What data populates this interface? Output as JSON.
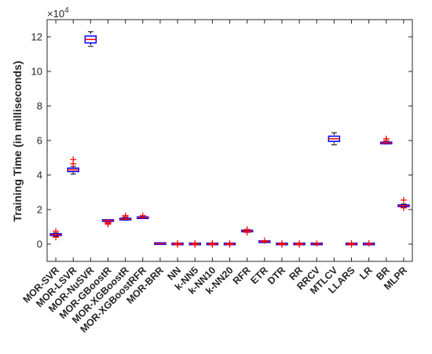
{
  "chart_data": {
    "type": "boxplot",
    "title": "",
    "xlabel": "",
    "ylabel": "Training Time (in milliseconds)",
    "y_multiplier": "×10^4",
    "y_multiplier_base": "×10",
    "y_multiplier_exp": "4",
    "ylim": [
      -1,
      13
    ],
    "yticks": [
      0,
      2,
      4,
      6,
      8,
      10,
      12
    ],
    "grid": false,
    "box_color": "#0000ff",
    "median_color": "#ff0000",
    "outlier_color": "#ff0000",
    "whisker_color": "#000000",
    "values_unit_note": "values in units of 10^4 ms",
    "categories": [
      "MOR-SVR",
      "MOR-LSVR",
      "MOR-NuSVR",
      "MOR-GBoostR",
      "MOR-XGBoostR",
      "MOR-XGBoostRFR",
      "MOR-BRR",
      "NN",
      "k-NN5",
      "k-NN10",
      "k-NN20",
      "RFR",
      "ETR",
      "DTR",
      "RR",
      "RRCV",
      "MTLCV",
      "LLARS",
      "LR",
      "BR",
      "MLPR"
    ],
    "boxes": [
      {
        "min": 0.45,
        "q1": 0.5,
        "median": 0.55,
        "q3": 0.6,
        "max": 0.65,
        "outliers": [
          0.75,
          0.4
        ]
      },
      {
        "min": 4.05,
        "q1": 4.2,
        "median": 4.3,
        "q3": 4.4,
        "max": 4.5,
        "outliers": [
          4.65,
          4.9
        ]
      },
      {
        "min": 11.45,
        "q1": 11.65,
        "median": 11.85,
        "q3": 12.05,
        "max": 12.3,
        "outliers": []
      },
      {
        "min": 1.32,
        "q1": 1.35,
        "median": 1.37,
        "q3": 1.38,
        "max": 1.4,
        "outliers": [
          1.15,
          1.2,
          1.25
        ]
      },
      {
        "min": 1.38,
        "q1": 1.42,
        "median": 1.45,
        "q3": 1.48,
        "max": 1.52,
        "outliers": [
          1.58,
          1.65
        ]
      },
      {
        "min": 1.48,
        "q1": 1.5,
        "median": 1.53,
        "q3": 1.56,
        "max": 1.6,
        "outliers": [
          1.65
        ]
      },
      {
        "min": 0.02,
        "q1": 0.025,
        "median": 0.03,
        "q3": 0.035,
        "max": 0.04,
        "outliers": []
      },
      {
        "min": 0.0,
        "q1": 0.0,
        "median": 0.01,
        "q3": 0.02,
        "max": 0.02,
        "outliers": [
          0.05,
          -0.03
        ]
      },
      {
        "min": 0.0,
        "q1": 0.0,
        "median": 0.01,
        "q3": 0.02,
        "max": 0.02,
        "outliers": [
          0.05,
          -0.03
        ]
      },
      {
        "min": 0.0,
        "q1": 0.0,
        "median": 0.01,
        "q3": 0.02,
        "max": 0.02,
        "outliers": [
          0.05,
          -0.03
        ]
      },
      {
        "min": 0.0,
        "q1": 0.0,
        "median": 0.01,
        "q3": 0.02,
        "max": 0.02,
        "outliers": [
          0.05,
          -0.03
        ]
      },
      {
        "min": 0.72,
        "q1": 0.74,
        "median": 0.76,
        "q3": 0.78,
        "max": 0.8,
        "outliers": [
          0.85,
          0.68
        ]
      },
      {
        "min": 0.12,
        "q1": 0.13,
        "median": 0.14,
        "q3": 0.15,
        "max": 0.16,
        "outliers": [
          0.2
        ]
      },
      {
        "min": 0.0,
        "q1": 0.0,
        "median": 0.01,
        "q3": 0.02,
        "max": 0.02,
        "outliers": [
          0.05,
          -0.03
        ]
      },
      {
        "min": 0.0,
        "q1": 0.0,
        "median": 0.01,
        "q3": 0.02,
        "max": 0.02,
        "outliers": [
          0.05,
          -0.03
        ]
      },
      {
        "min": 0.0,
        "q1": 0.0,
        "median": 0.01,
        "q3": 0.02,
        "max": 0.02,
        "outliers": [
          0.04
        ]
      },
      {
        "min": 5.75,
        "q1": 5.95,
        "median": 6.1,
        "q3": 6.25,
        "max": 6.45,
        "outliers": []
      },
      {
        "min": 0.0,
        "q1": 0.0,
        "median": 0.01,
        "q3": 0.02,
        "max": 0.02,
        "outliers": [
          0.05,
          -0.03
        ]
      },
      {
        "min": 0.0,
        "q1": 0.0,
        "median": 0.01,
        "q3": 0.02,
        "max": 0.02,
        "outliers": [
          0.04
        ]
      },
      {
        "min": 5.8,
        "q1": 5.83,
        "median": 5.86,
        "q3": 5.89,
        "max": 5.92,
        "outliers": [
          6.0,
          6.1
        ]
      },
      {
        "min": 2.12,
        "q1": 2.17,
        "median": 2.22,
        "q3": 2.27,
        "max": 2.32,
        "outliers": [
          2.55,
          2.1
        ]
      }
    ]
  }
}
